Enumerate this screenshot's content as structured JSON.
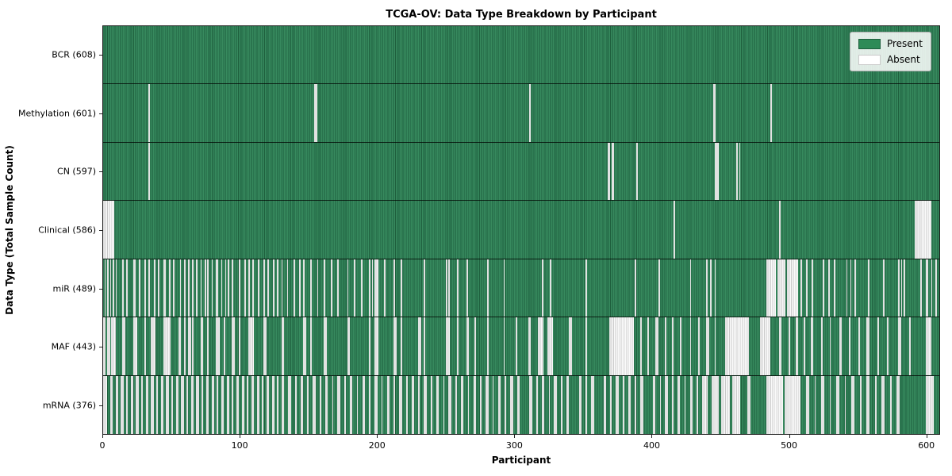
{
  "chart_data": {
    "type": "heatmap",
    "title": "TCGA-OV: Data Type Breakdown by Participant",
    "xlabel": "Participant",
    "ylabel": "Data Type (Total Sample Count)",
    "x_ticks": [
      0,
      100,
      200,
      300,
      400,
      500,
      600
    ],
    "xlim": [
      0,
      610
    ],
    "total_participants": 608,
    "grid": false,
    "legend": {
      "position": "upper right",
      "entries": [
        {
          "label": "Present",
          "color": "#2e8b57"
        },
        {
          "label": "Absent",
          "color": "#ffffff"
        }
      ]
    },
    "colors": {
      "present": "#2e8b57",
      "present_dark": "#1e5f3d",
      "present_light": "#378a5e",
      "absent": "#fafafa",
      "absent_shade": "#c9c9c9"
    },
    "rows": [
      {
        "label": "BCR (608)",
        "data_type": "BCR",
        "present_count": 608,
        "absent_ranges": []
      },
      {
        "label": "Methylation (601)",
        "data_type": "Methylation",
        "present_count": 601,
        "absent_ranges": [
          [
            33,
            33
          ],
          [
            154,
            155
          ],
          [
            311,
            311
          ],
          [
            445,
            446
          ],
          [
            487,
            487
          ]
        ]
      },
      {
        "label": "CN (597)",
        "data_type": "CN",
        "present_count": 597,
        "absent_ranges": [
          [
            33,
            33
          ],
          [
            368,
            369
          ],
          [
            371,
            372
          ],
          [
            389,
            389
          ],
          [
            446,
            448
          ],
          [
            462,
            462
          ],
          [
            464,
            464
          ]
        ]
      },
      {
        "label": "Clinical (586)",
        "data_type": "Clinical",
        "present_count": 586,
        "absent_ranges": [
          [
            0,
            7
          ],
          [
            416,
            416
          ],
          [
            493,
            493
          ],
          [
            592,
            603
          ]
        ]
      },
      {
        "label": "miR (489)",
        "data_type": "miR",
        "present_count": 489,
        "absent_ranges": [
          [
            1,
            1
          ],
          [
            3,
            3
          ],
          [
            5,
            5
          ],
          [
            7,
            7
          ],
          [
            9,
            9
          ],
          [
            14,
            14
          ],
          [
            17,
            17
          ],
          [
            22,
            23
          ],
          [
            26,
            26
          ],
          [
            30,
            30
          ],
          [
            33,
            33
          ],
          [
            37,
            37
          ],
          [
            40,
            40
          ],
          [
            44,
            45
          ],
          [
            48,
            48
          ],
          [
            51,
            51
          ],
          [
            56,
            56
          ],
          [
            59,
            59
          ],
          [
            62,
            62
          ],
          [
            65,
            65
          ],
          [
            68,
            68
          ],
          [
            71,
            71
          ],
          [
            74,
            74
          ],
          [
            76,
            76
          ],
          [
            79,
            79
          ],
          [
            82,
            83
          ],
          [
            86,
            86
          ],
          [
            89,
            89
          ],
          [
            91,
            91
          ],
          [
            94,
            94
          ],
          [
            99,
            99
          ],
          [
            103,
            103
          ],
          [
            106,
            106
          ],
          [
            109,
            109
          ],
          [
            113,
            113
          ],
          [
            117,
            117
          ],
          [
            120,
            120
          ],
          [
            124,
            124
          ],
          [
            127,
            127
          ],
          [
            130,
            130
          ],
          [
            134,
            134
          ],
          [
            139,
            139
          ],
          [
            143,
            143
          ],
          [
            146,
            146
          ],
          [
            151,
            151
          ],
          [
            156,
            156
          ],
          [
            161,
            161
          ],
          [
            166,
            166
          ],
          [
            171,
            171
          ],
          [
            178,
            178
          ],
          [
            183,
            183
          ],
          [
            188,
            188
          ],
          [
            194,
            194
          ],
          [
            196,
            196
          ],
          [
            198,
            200
          ],
          [
            205,
            205
          ],
          [
            212,
            212
          ],
          [
            217,
            217
          ],
          [
            234,
            234
          ],
          [
            250,
            250
          ],
          [
            252,
            252
          ],
          [
            258,
            258
          ],
          [
            265,
            265
          ],
          [
            280,
            280
          ],
          [
            292,
            292
          ],
          [
            320,
            320
          ],
          [
            326,
            326
          ],
          [
            352,
            352
          ],
          [
            388,
            388
          ],
          [
            405,
            405
          ],
          [
            428,
            428
          ],
          [
            440,
            440
          ],
          [
            443,
            443
          ],
          [
            446,
            446
          ],
          [
            484,
            490
          ],
          [
            492,
            497
          ],
          [
            499,
            506
          ],
          [
            509,
            509
          ],
          [
            513,
            513
          ],
          [
            517,
            517
          ],
          [
            525,
            525
          ],
          [
            529,
            529
          ],
          [
            533,
            533
          ],
          [
            542,
            542
          ],
          [
            545,
            545
          ],
          [
            548,
            548
          ],
          [
            558,
            558
          ],
          [
            569,
            569
          ],
          [
            580,
            580
          ],
          [
            582,
            582
          ],
          [
            584,
            584
          ],
          [
            596,
            596
          ],
          [
            600,
            601
          ],
          [
            604,
            604
          ],
          [
            607,
            607
          ]
        ]
      },
      {
        "label": "MAF (443)",
        "data_type": "MAF",
        "present_count": 443,
        "absent_ranges": [
          [
            0,
            1
          ],
          [
            3,
            4
          ],
          [
            6,
            8
          ],
          [
            14,
            15
          ],
          [
            22,
            24
          ],
          [
            30,
            30
          ],
          [
            35,
            37
          ],
          [
            44,
            48
          ],
          [
            55,
            56
          ],
          [
            59,
            59
          ],
          [
            62,
            63
          ],
          [
            65,
            65
          ],
          [
            71,
            72
          ],
          [
            76,
            76
          ],
          [
            82,
            84
          ],
          [
            88,
            88
          ],
          [
            94,
            95
          ],
          [
            99,
            99
          ],
          [
            106,
            109
          ],
          [
            117,
            118
          ],
          [
            130,
            131
          ],
          [
            146,
            147
          ],
          [
            151,
            151
          ],
          [
            161,
            162
          ],
          [
            178,
            179
          ],
          [
            194,
            194
          ],
          [
            198,
            200
          ],
          [
            212,
            213
          ],
          [
            217,
            217
          ],
          [
            230,
            231
          ],
          [
            234,
            234
          ],
          [
            250,
            252
          ],
          [
            258,
            258
          ],
          [
            265,
            266
          ],
          [
            271,
            271
          ],
          [
            280,
            280
          ],
          [
            292,
            292
          ],
          [
            301,
            301
          ],
          [
            310,
            311
          ],
          [
            317,
            320
          ],
          [
            324,
            327
          ],
          [
            340,
            341
          ],
          [
            352,
            352
          ],
          [
            369,
            386
          ],
          [
            392,
            392
          ],
          [
            397,
            397
          ],
          [
            403,
            404
          ],
          [
            410,
            410
          ],
          [
            415,
            415
          ],
          [
            421,
            421
          ],
          [
            428,
            428
          ],
          [
            434,
            434
          ],
          [
            440,
            441
          ],
          [
            446,
            446
          ],
          [
            454,
            470
          ],
          [
            479,
            486
          ],
          [
            493,
            494
          ],
          [
            500,
            500
          ],
          [
            505,
            506
          ],
          [
            511,
            511
          ],
          [
            516,
            517
          ],
          [
            524,
            524
          ],
          [
            530,
            530
          ],
          [
            537,
            538
          ],
          [
            544,
            544
          ],
          [
            551,
            551
          ],
          [
            557,
            558
          ],
          [
            565,
            565
          ],
          [
            572,
            572
          ],
          [
            580,
            581
          ],
          [
            588,
            588
          ],
          [
            600,
            603
          ]
        ]
      },
      {
        "label": "mRNA (376)",
        "data_type": "mRNA",
        "present_count": 376,
        "absent_ranges": [
          [
            0,
            2
          ],
          [
            5,
            6
          ],
          [
            9,
            10
          ],
          [
            13,
            14
          ],
          [
            17,
            17
          ],
          [
            20,
            21
          ],
          [
            24,
            25
          ],
          [
            28,
            28
          ],
          [
            31,
            32
          ],
          [
            35,
            36
          ],
          [
            39,
            39
          ],
          [
            42,
            43
          ],
          [
            46,
            47
          ],
          [
            50,
            50
          ],
          [
            53,
            54
          ],
          [
            57,
            58
          ],
          [
            61,
            61
          ],
          [
            64,
            65
          ],
          [
            68,
            69
          ],
          [
            72,
            72
          ],
          [
            75,
            76
          ],
          [
            79,
            80
          ],
          [
            83,
            83
          ],
          [
            86,
            87
          ],
          [
            90,
            91
          ],
          [
            94,
            94
          ],
          [
            97,
            98
          ],
          [
            101,
            102
          ],
          [
            105,
            105
          ],
          [
            108,
            109
          ],
          [
            112,
            113
          ],
          [
            116,
            116
          ],
          [
            119,
            120
          ],
          [
            123,
            124
          ],
          [
            127,
            127
          ],
          [
            130,
            131
          ],
          [
            135,
            136
          ],
          [
            140,
            140
          ],
          [
            144,
            145
          ],
          [
            149,
            149
          ],
          [
            153,
            154
          ],
          [
            158,
            158
          ],
          [
            162,
            163
          ],
          [
            167,
            167
          ],
          [
            171,
            172
          ],
          [
            176,
            176
          ],
          [
            180,
            181
          ],
          [
            185,
            185
          ],
          [
            189,
            190
          ],
          [
            194,
            194
          ],
          [
            198,
            199
          ],
          [
            203,
            203
          ],
          [
            207,
            208
          ],
          [
            212,
            212
          ],
          [
            216,
            217
          ],
          [
            221,
            221
          ],
          [
            225,
            226
          ],
          [
            230,
            230
          ],
          [
            234,
            235
          ],
          [
            239,
            239
          ],
          [
            243,
            244
          ],
          [
            248,
            248
          ],
          [
            252,
            253
          ],
          [
            257,
            257
          ],
          [
            261,
            262
          ],
          [
            266,
            266
          ],
          [
            270,
            271
          ],
          [
            275,
            275
          ],
          [
            279,
            280
          ],
          [
            284,
            284
          ],
          [
            288,
            289
          ],
          [
            293,
            293
          ],
          [
            297,
            298
          ],
          [
            302,
            303
          ],
          [
            311,
            312
          ],
          [
            316,
            316
          ],
          [
            320,
            321
          ],
          [
            325,
            325
          ],
          [
            329,
            330
          ],
          [
            334,
            334
          ],
          [
            338,
            339
          ],
          [
            347,
            348
          ],
          [
            352,
            352
          ],
          [
            356,
            357
          ],
          [
            365,
            366
          ],
          [
            370,
            370
          ],
          [
            374,
            375
          ],
          [
            379,
            379
          ],
          [
            383,
            384
          ],
          [
            388,
            388
          ],
          [
            392,
            393
          ],
          [
            401,
            402
          ],
          [
            406,
            406
          ],
          [
            410,
            411
          ],
          [
            415,
            415
          ],
          [
            419,
            420
          ],
          [
            424,
            424
          ],
          [
            428,
            429
          ],
          [
            433,
            433
          ],
          [
            437,
            440
          ],
          [
            444,
            448
          ],
          [
            451,
            456
          ],
          [
            459,
            464
          ],
          [
            470,
            471
          ],
          [
            484,
            495
          ],
          [
            497,
            508
          ],
          [
            513,
            514
          ],
          [
            519,
            519
          ],
          [
            524,
            525
          ],
          [
            530,
            530
          ],
          [
            535,
            536
          ],
          [
            541,
            541
          ],
          [
            546,
            547
          ],
          [
            552,
            552
          ],
          [
            557,
            558
          ],
          [
            563,
            563
          ],
          [
            568,
            569
          ],
          [
            574,
            574
          ],
          [
            579,
            580
          ],
          [
            600,
            605
          ]
        ]
      }
    ]
  }
}
